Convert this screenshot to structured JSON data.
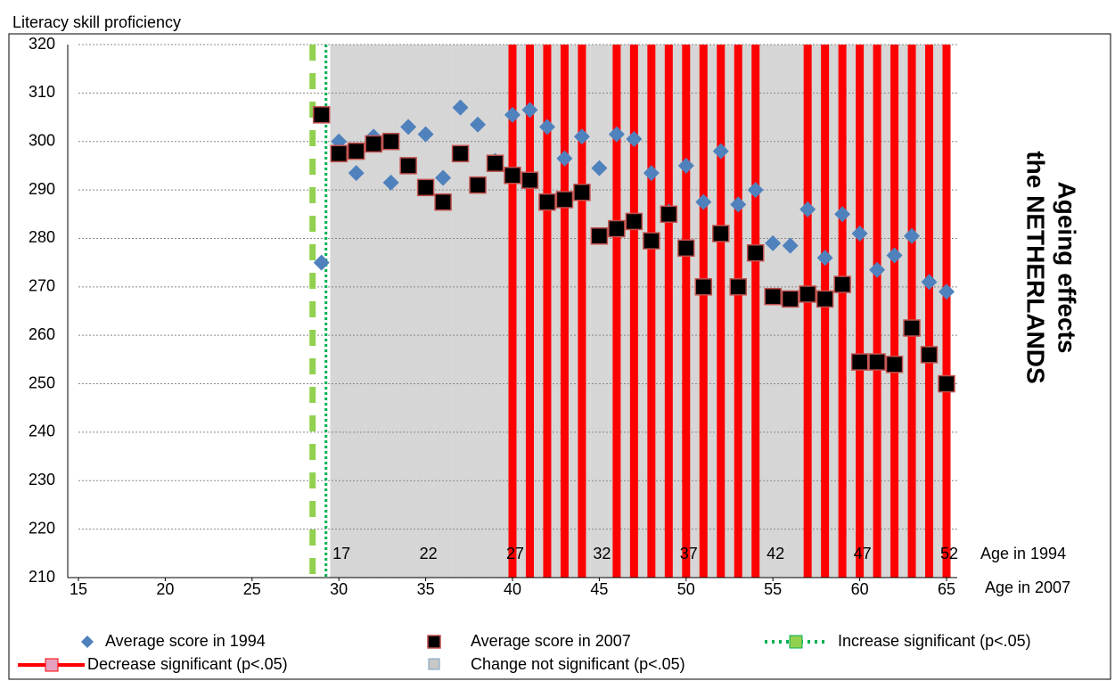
{
  "chart_data": {
    "type": "scatter",
    "y_label": "Literacy skill proficiency",
    "side_title": [
      "Ageing effects",
      "the NETHERLANDS"
    ],
    "x_label": "Age in 2007",
    "x2_label": "Age in 1994",
    "x": [
      29,
      30,
      31,
      32,
      33,
      34,
      35,
      36,
      37,
      38,
      39,
      40,
      41,
      42,
      43,
      44,
      45,
      46,
      47,
      48,
      49,
      50,
      51,
      52,
      53,
      54,
      55,
      56,
      57,
      58,
      59,
      60,
      61,
      62,
      63,
      64,
      65
    ],
    "series": [
      {
        "name": "Average score in 1994",
        "color": "#4f81bd",
        "marker": "diamond",
        "values": [
          275,
          300,
          293.5,
          301,
          291.5,
          303,
          301.5,
          292.5,
          307,
          303.5,
          296,
          305.5,
          306.5,
          303,
          296.5,
          301,
          294.5,
          301.5,
          300.5,
          293.5,
          285.5,
          295,
          287.5,
          298,
          287,
          290,
          279,
          278.5,
          286,
          276,
          285,
          281,
          273.5,
          276.5,
          280.5,
          271,
          269
        ]
      },
      {
        "name": "Average score in 2007",
        "color": "#000000",
        "edge": "#c0504d",
        "marker": "square",
        "values": [
          305.5,
          297.5,
          298,
          299.5,
          300,
          295,
          290.5,
          287.5,
          297.5,
          291,
          295.5,
          293,
          292,
          287.5,
          288,
          289.5,
          280.5,
          282,
          283.5,
          279.5,
          285,
          278,
          270,
          281,
          270,
          277,
          268,
          267.5,
          268.5,
          267.5,
          270.5,
          254.5,
          254.5,
          254,
          261.5,
          256,
          250
        ]
      }
    ],
    "significance": {
      "increase": {
        "name": "Increase significant (p<.05)",
        "color": "#00b050",
        "ages": [
          29
        ]
      },
      "decrease": {
        "name": "Decrease significant (p<.05)",
        "color": "#ff0000",
        "ages": [
          40,
          41,
          42,
          43,
          44,
          46,
          47,
          48,
          49,
          50,
          51,
          52,
          53,
          54,
          57,
          58,
          59,
          60,
          61,
          62,
          63,
          64,
          65
        ]
      },
      "not_significant": {
        "name": "Change not significant (p<.05)",
        "color": "#c8c8c8"
      }
    },
    "xlim": [
      15,
      65
    ],
    "xticks": [
      15,
      20,
      25,
      30,
      35,
      40,
      45,
      50,
      55,
      60,
      65
    ],
    "x2lim": [
      2,
      52
    ],
    "x2ticks": [
      17,
      22,
      27,
      32,
      37,
      42,
      47,
      52
    ],
    "ylim": [
      210,
      320
    ],
    "yticks": [
      210,
      220,
      230,
      240,
      250,
      260,
      270,
      280,
      290,
      300,
      310,
      320
    ],
    "grid": true
  }
}
